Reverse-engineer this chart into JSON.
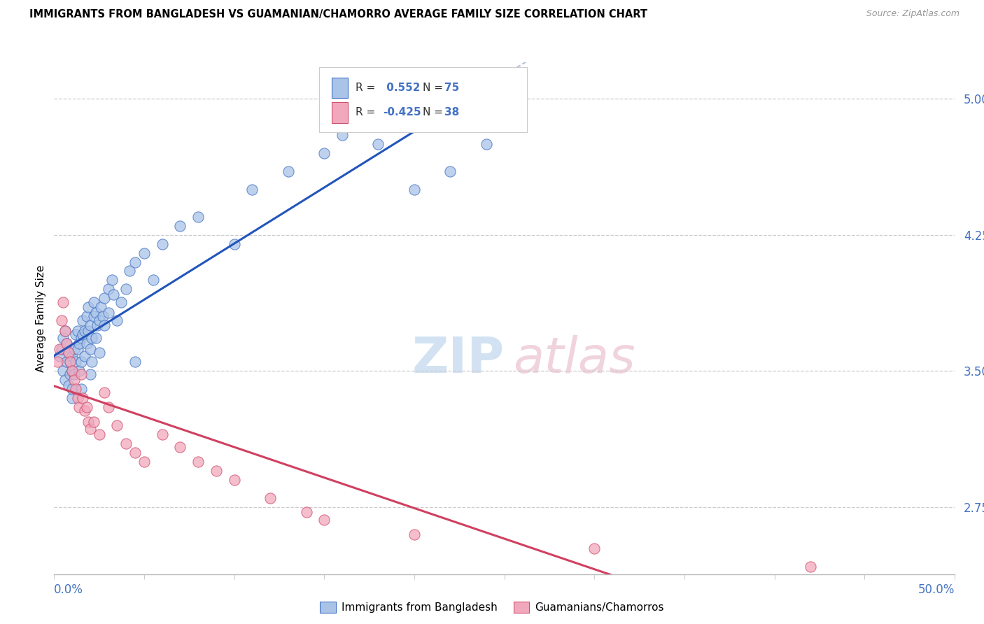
{
  "title": "IMMIGRANTS FROM BANGLADESH VS GUAMANIAN/CHAMORRO AVERAGE FAMILY SIZE CORRELATION CHART",
  "source": "Source: ZipAtlas.com",
  "ylabel": "Average Family Size",
  "right_yticks": [
    2.75,
    3.5,
    4.25,
    5.0
  ],
  "xlim": [
    0.0,
    50.0
  ],
  "ylim": [
    2.38,
    5.2
  ],
  "R_blue": 0.552,
  "N_blue": 75,
  "R_pink": -0.425,
  "N_pink": 38,
  "legend_label_blue": "Immigrants from Bangladesh",
  "legend_label_pink": "Guamanians/Chamorros",
  "blue_face_color": "#aac4e8",
  "pink_face_color": "#f2a8bc",
  "blue_edge_color": "#4472c4",
  "pink_edge_color": "#d05070",
  "blue_line_color": "#2255bb",
  "pink_line_color": "#d04060",
  "gray_dash_color": "#aabbcc",
  "accent_color": "#4472c4",
  "watermark_zip_color": "#c8d8ee",
  "watermark_atlas_color": "#e8ccd8",
  "blue_scatter_x": [
    0.3,
    0.4,
    0.5,
    0.5,
    0.6,
    0.6,
    0.7,
    0.7,
    0.8,
    0.8,
    0.9,
    0.9,
    1.0,
    1.0,
    1.0,
    1.0,
    1.1,
    1.1,
    1.2,
    1.2,
    1.3,
    1.3,
    1.4,
    1.4,
    1.5,
    1.5,
    1.5,
    1.6,
    1.6,
    1.7,
    1.7,
    1.8,
    1.8,
    1.9,
    1.9,
    2.0,
    2.0,
    2.0,
    2.1,
    2.1,
    2.2,
    2.2,
    2.3,
    2.3,
    2.4,
    2.5,
    2.5,
    2.6,
    2.7,
    2.8,
    2.8,
    3.0,
    3.0,
    3.2,
    3.3,
    3.5,
    3.7,
    4.0,
    4.2,
    4.5,
    5.0,
    5.5,
    6.0,
    7.0,
    8.0,
    10.0,
    11.0,
    13.0,
    15.0,
    16.0,
    18.0,
    20.0,
    22.0,
    24.0,
    4.5
  ],
  "blue_scatter_y": [
    3.58,
    3.62,
    3.5,
    3.68,
    3.45,
    3.72,
    3.55,
    3.65,
    3.42,
    3.6,
    3.48,
    3.55,
    3.35,
    3.5,
    3.4,
    3.58,
    3.48,
    3.62,
    3.55,
    3.7,
    3.62,
    3.72,
    3.5,
    3.65,
    3.4,
    3.55,
    3.68,
    3.7,
    3.78,
    3.58,
    3.72,
    3.65,
    3.8,
    3.72,
    3.85,
    3.48,
    3.62,
    3.75,
    3.55,
    3.68,
    3.8,
    3.88,
    3.68,
    3.82,
    3.75,
    3.6,
    3.78,
    3.85,
    3.8,
    3.9,
    3.75,
    3.95,
    3.82,
    4.0,
    3.92,
    3.78,
    3.88,
    3.95,
    4.05,
    4.1,
    4.15,
    4.0,
    4.2,
    4.3,
    4.35,
    4.2,
    4.5,
    4.6,
    4.7,
    4.8,
    4.75,
    4.5,
    4.6,
    4.75,
    3.55
  ],
  "pink_scatter_x": [
    0.2,
    0.3,
    0.4,
    0.5,
    0.6,
    0.7,
    0.8,
    0.9,
    1.0,
    1.1,
    1.2,
    1.3,
    1.4,
    1.5,
    1.6,
    1.7,
    1.8,
    1.9,
    2.0,
    2.2,
    2.5,
    2.8,
    3.0,
    3.5,
    4.0,
    4.5,
    5.0,
    6.0,
    7.0,
    8.0,
    9.0,
    10.0,
    12.0,
    14.0,
    15.0,
    20.0,
    30.0,
    42.0
  ],
  "pink_scatter_y": [
    3.55,
    3.62,
    3.78,
    3.88,
    3.72,
    3.65,
    3.6,
    3.55,
    3.5,
    3.45,
    3.4,
    3.35,
    3.3,
    3.48,
    3.35,
    3.28,
    3.3,
    3.22,
    3.18,
    3.22,
    3.15,
    3.38,
    3.3,
    3.2,
    3.1,
    3.05,
    3.0,
    3.15,
    3.08,
    3.0,
    2.95,
    2.9,
    2.8,
    2.72,
    2.68,
    2.6,
    2.52,
    2.42
  ]
}
